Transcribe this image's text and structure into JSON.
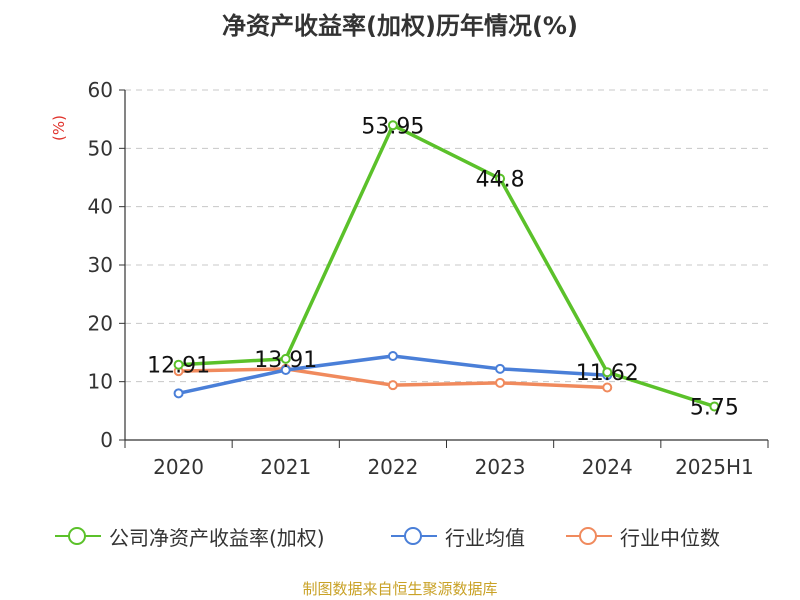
{
  "title": "净资产收益率(加权)历年情况(%)",
  "source": "制图数据来自恒生聚源数据库",
  "colors": {
    "series1": "#5bc12a",
    "series2": "#4a7fd8",
    "series3": "#f08a5d",
    "axis": "#333333",
    "grid": "#c8c8c8",
    "ylabel": "#e0322b"
  },
  "chart_data": {
    "type": "line",
    "ylabel": "(%)",
    "xlabel": "",
    "ylim": [
      0,
      60
    ],
    "yticks": [
      0,
      10,
      20,
      30,
      40,
      50,
      60
    ],
    "grid": true,
    "legend_position": "bottom",
    "categories": [
      "2020",
      "2021",
      "2022",
      "2023",
      "2024",
      "2025H1"
    ],
    "series": [
      {
        "name": "公司净资产收益率(加权)",
        "color": "#5bc12a",
        "values": [
          12.91,
          13.91,
          53.95,
          44.8,
          11.62,
          5.75
        ],
        "labels": [
          "12.91",
          "13.91",
          "53.95",
          "44.8",
          "11.62",
          "5.75"
        ]
      },
      {
        "name": "行业均值",
        "color": "#4a7fd8",
        "values": [
          8.0,
          12.0,
          14.4,
          12.2,
          11.1,
          null
        ]
      },
      {
        "name": "行业中位数",
        "color": "#f08a5d",
        "values": [
          11.8,
          12.2,
          9.4,
          9.8,
          9.0,
          null
        ]
      }
    ]
  }
}
